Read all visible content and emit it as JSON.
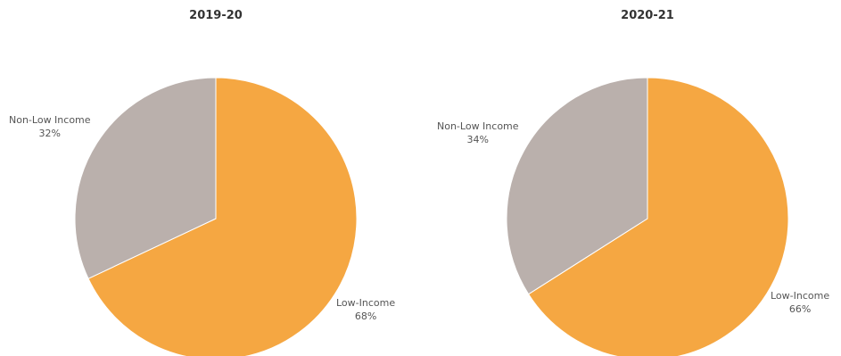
{
  "chart_data": [
    {
      "type": "pie",
      "title": "2019-20",
      "slices": [
        {
          "label": "Low-Income",
          "value": 68,
          "value_label": "68%",
          "color": "#F5A742"
        },
        {
          "label": "Non-Low Income",
          "value": 32,
          "value_label": "32%",
          "color": "#BAB0AC"
        }
      ]
    },
    {
      "type": "pie",
      "title": "2020-21",
      "slices": [
        {
          "label": "Low-Income",
          "value": 66,
          "value_label": "66%",
          "color": "#F5A742"
        },
        {
          "label": "Non-Low Income",
          "value": 34,
          "value_label": "34%",
          "color": "#BAB0AC"
        }
      ]
    }
  ]
}
